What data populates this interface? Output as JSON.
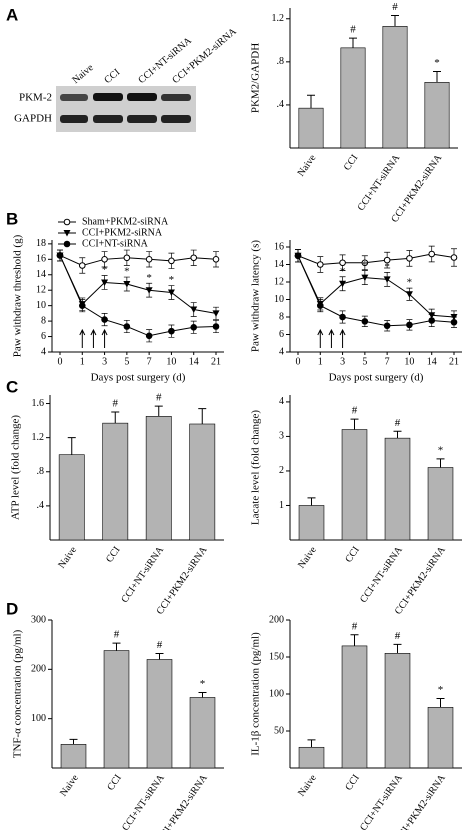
{
  "panels": [
    "A",
    "B",
    "C",
    "D"
  ],
  "blot": {
    "lanes": [
      "Naive",
      "CCI",
      "CCI+NT-siRNA",
      "CCI+PKM2-siRNA"
    ],
    "rows": [
      "PKM-2",
      "GAPDH"
    ]
  },
  "chart_data": [
    {
      "type": "bar",
      "ylabel": "PKM2/GAPDH",
      "categories": [
        "Naive",
        "CCI",
        "CCI+NT-siRNA",
        "CCI+PKM2-siRNA"
      ],
      "values": [
        0.37,
        0.93,
        1.13,
        0.61
      ],
      "errors": [
        0.12,
        0.09,
        0.1,
        0.1
      ],
      "annotations": [
        null,
        "#",
        "#",
        "*"
      ],
      "ylim": [
        0,
        1.3
      ],
      "yticks": [
        {
          "value": 0.4,
          "label": ".4"
        },
        {
          "value": 0.8,
          "label": ".8"
        },
        {
          "value": 1.2,
          "label": "1.2"
        }
      ],
      "color": "#b3b3b3"
    },
    {
      "type": "line",
      "ylabel": "Paw withdraw threshold (g)",
      "xlabel": "Days post surgery (d)",
      "categories": [
        "0",
        "1",
        "3",
        "5",
        "7",
        "10",
        "14",
        "21"
      ],
      "ylim": [
        4,
        18.5
      ],
      "yticks": [
        4,
        6,
        8,
        10,
        12,
        14,
        16,
        18
      ],
      "legend": "top-left",
      "series": [
        {
          "name": "Sham+PKM2-siRNA",
          "marker": "open-circle",
          "color": "#000000",
          "values": [
            16.5,
            15.2,
            16,
            16.2,
            16,
            15.8,
            16.2,
            16
          ],
          "errors": [
            0.7,
            1,
            1,
            1,
            1,
            1,
            1,
            1
          ]
        },
        {
          "name": "CCI+PKM2-siRNA",
          "marker": "triangle",
          "color": "#000000",
          "values": [
            16.5,
            10.2,
            13,
            12.8,
            12,
            11.7,
            9.5,
            9
          ],
          "errors": [
            0.7,
            0.8,
            0.9,
            0.9,
            0.9,
            0.9,
            0.9,
            0.8
          ],
          "annotations": [
            null,
            null,
            "*",
            "*",
            "*",
            "*",
            null,
            null
          ]
        },
        {
          "name": "CCI+NT-siRNA",
          "marker": "circle",
          "color": "#000000",
          "values": [
            16.5,
            10,
            8.2,
            7.3,
            6.1,
            6.7,
            7.2,
            7.3
          ],
          "errors": [
            0.7,
            0.8,
            0.8,
            0.8,
            0.8,
            0.8,
            0.8,
            0.8
          ]
        }
      ]
    },
    {
      "type": "line",
      "ylabel": "Paw withdraw latency (s)",
      "xlabel": "Days post surgery (d)",
      "categories": [
        "0",
        "1",
        "3",
        "5",
        "7",
        "10",
        "14",
        "21"
      ],
      "ylim": [
        4,
        16.8
      ],
      "yticks": [
        4,
        6,
        8,
        10,
        12,
        14,
        16
      ],
      "series": [
        {
          "marker": "open-circle",
          "color": "#000000",
          "values": [
            15,
            14,
            14.2,
            14.2,
            14.5,
            14.7,
            15.2,
            14.8
          ],
          "errors": [
            0.7,
            0.9,
            0.9,
            0.8,
            0.9,
            0.9,
            0.9,
            1
          ]
        },
        {
          "marker": "triangle",
          "color": "#000000",
          "values": [
            15,
            9.5,
            11.8,
            12.5,
            12.3,
            10.6,
            8.2,
            8
          ],
          "errors": [
            0.7,
            0.7,
            0.8,
            0.8,
            0.8,
            0.7,
            0.7,
            0.7
          ],
          "annotations": [
            null,
            null,
            "*",
            "*",
            "*",
            "*",
            null,
            null
          ]
        },
        {
          "marker": "circle",
          "color": "#000000",
          "values": [
            15,
            9.3,
            8,
            7.5,
            7,
            7.1,
            7.6,
            7.4
          ],
          "errors": [
            0.7,
            0.7,
            0.7,
            0.6,
            0.6,
            0.6,
            0.7,
            0.6
          ]
        }
      ]
    },
    {
      "type": "bar",
      "ylabel": "ATP level (fold change)",
      "categories": [
        "Naive",
        "CCI",
        "CCI+NT-siRNA",
        "CCI+PKM2-siRNA"
      ],
      "values": [
        1.0,
        1.37,
        1.45,
        1.36
      ],
      "errors": [
        0.2,
        0.13,
        0.12,
        0.18
      ],
      "annotations": [
        null,
        "#",
        "#",
        null
      ],
      "ylim": [
        0,
        1.7
      ],
      "yticks": [
        {
          "value": 0.4,
          "label": ".4"
        },
        {
          "value": 0.8,
          "label": ".8"
        },
        {
          "value": 1.2,
          "label": "1.2"
        },
        {
          "value": 1.6,
          "label": "1.6"
        }
      ],
      "color": "#b3b3b3"
    },
    {
      "type": "bar",
      "ylabel": "Lacate level (fold change)",
      "categories": [
        "Naive",
        "CCI",
        "CCI+NT-siRNA",
        "CCI+PKM2-siRNA"
      ],
      "values": [
        1.0,
        3.2,
        2.95,
        2.1
      ],
      "errors": [
        0.22,
        0.3,
        0.2,
        0.25
      ],
      "annotations": [
        null,
        "#",
        "#",
        "*"
      ],
      "ylim": [
        0,
        4.2
      ],
      "yticks": [
        1,
        2,
        3,
        4
      ],
      "color": "#b3b3b3"
    },
    {
      "type": "bar",
      "ylabel": "TNF-α concentration (pg/ml)",
      "categories": [
        "Naive",
        "CCI",
        "CCI+NT-siRNA",
        "CCI+PKM2-siRNA"
      ],
      "values": [
        48,
        238,
        220,
        143
      ],
      "errors": [
        10,
        15,
        12,
        10
      ],
      "annotations": [
        null,
        "#",
        "#",
        "*"
      ],
      "ylim": [
        0,
        300
      ],
      "yticks": [
        100,
        200,
        300
      ],
      "color": "#b3b3b3"
    },
    {
      "type": "bar",
      "ylabel": "IL-1β concentration (pg/ml)",
      "categories": [
        "Naive",
        "CCI",
        "CCI+NT-siRNA",
        "CCI+PKM2-siRNA"
      ],
      "values": [
        28,
        165,
        155,
        82
      ],
      "errors": [
        10,
        15,
        12,
        12
      ],
      "annotations": [
        null,
        "#",
        "#",
        "*"
      ],
      "ylim": [
        0,
        200
      ],
      "yticks": [
        50,
        100,
        150,
        200
      ],
      "color": "#b3b3b3"
    }
  ]
}
